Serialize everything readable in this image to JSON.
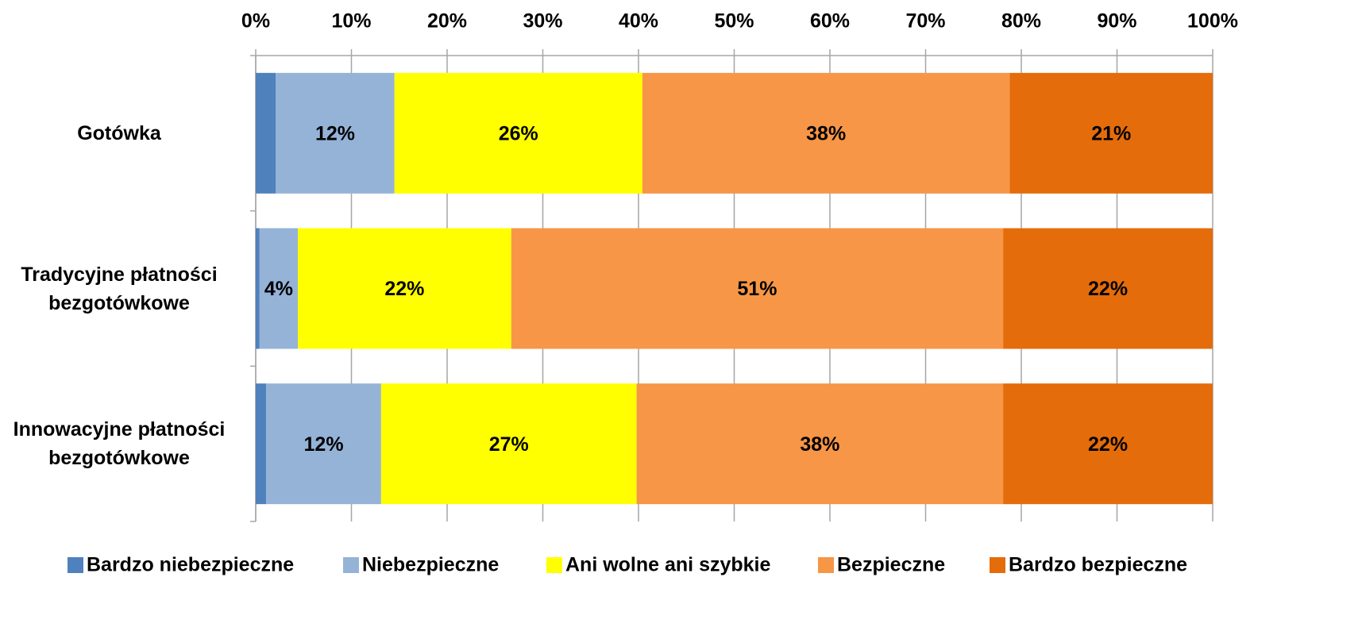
{
  "chart_data": {
    "type": "stacked_barh",
    "categories": [
      "Gotówka",
      "Tradycyjne płatności bezgotówkowe",
      "Innowacyjne płatności bezgotówkowe"
    ],
    "series": [
      {
        "name": "Bardzo niebezpieczne",
        "color": "#4f81bd",
        "values": [
          2.1,
          0.4,
          1.1
        ],
        "value_labels": [
          null,
          null,
          null
        ]
      },
      {
        "name": "Niebezpieczne",
        "color": "#95b3d7",
        "values": [
          12.4,
          4.0,
          12.0
        ],
        "value_labels": [
          "12%",
          "4%",
          "12%"
        ]
      },
      {
        "name": "Ani wolne ani szybkie",
        "color": "#ffff00",
        "values": [
          25.9,
          22.3,
          26.7
        ],
        "value_labels": [
          "26%",
          "22%",
          "27%"
        ]
      },
      {
        "name": "Bezpieczne",
        "color": "#f79646",
        "values": [
          38.4,
          51.4,
          38.3
        ],
        "value_labels": [
          "38%",
          "51%",
          "38%"
        ]
      },
      {
        "name": "Bardzo bezpieczne",
        "color": "#e46c0a",
        "values": [
          21.2,
          21.9,
          21.9
        ],
        "value_labels": [
          "21%",
          "22%",
          "22%"
        ]
      }
    ],
    "xlim": [
      0,
      100
    ],
    "xticks": [
      {
        "value": 0,
        "label": "0%"
      },
      {
        "value": 10,
        "label": "10%"
      },
      {
        "value": 20,
        "label": "20%"
      },
      {
        "value": 30,
        "label": "30%"
      },
      {
        "value": 40,
        "label": "40%"
      },
      {
        "value": 50,
        "label": "50%"
      },
      {
        "value": 60,
        "label": "60%"
      },
      {
        "value": 70,
        "label": "70%"
      },
      {
        "value": 80,
        "label": "80%"
      },
      {
        "value": 90,
        "label": "90%"
      },
      {
        "value": 100,
        "label": "100%"
      }
    ],
    "grid": true,
    "legend": "bottom"
  }
}
